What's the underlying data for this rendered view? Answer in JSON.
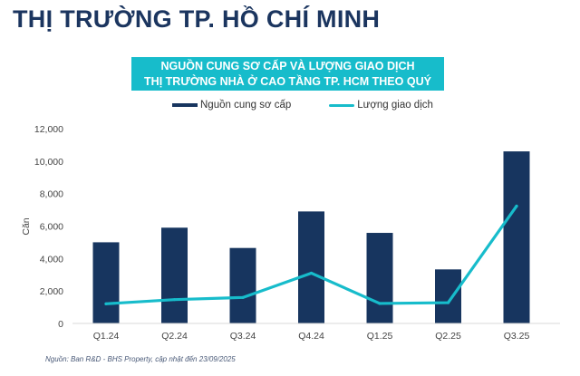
{
  "page_title": "THỊ TRƯỜNG TP. HỒ CHÍ MINH",
  "source": "Nguồn: Ban R&D - BHS Property, cập nhật đến 23/09/2025",
  "chart_data": {
    "type": "bar+line",
    "title_lines": [
      "NGUỒN CUNG SƠ CẤP VÀ LƯỢNG GIAO DỊCH",
      "THỊ TRƯỜNG NHÀ Ở CAO TẦNG TP. HCM THEO QUÝ"
    ],
    "ylabel": "Căn",
    "xlabel": "",
    "ylim": [
      0,
      12000
    ],
    "yticks": [
      "0",
      "2,000",
      "4,000",
      "6,000",
      "8,000",
      "10,000",
      "12,000"
    ],
    "grid": false,
    "legend_position": "top",
    "categories": [
      "Q1.24",
      "Q2.24",
      "Q3.24",
      "Q4.24",
      "Q1.25",
      "Q2.25",
      "Q3.25"
    ],
    "series": [
      {
        "name": "Nguồn cung sơ cấp",
        "type": "bar",
        "color": "#17355f",
        "values": [
          5000,
          5900,
          4650,
          6900,
          5580,
          3330,
          10600
        ]
      },
      {
        "name": "Lượng giao dịch",
        "type": "line",
        "color": "#17bccb",
        "values": [
          1210,
          1470,
          1600,
          3100,
          1230,
          1280,
          7230
        ]
      }
    ]
  }
}
